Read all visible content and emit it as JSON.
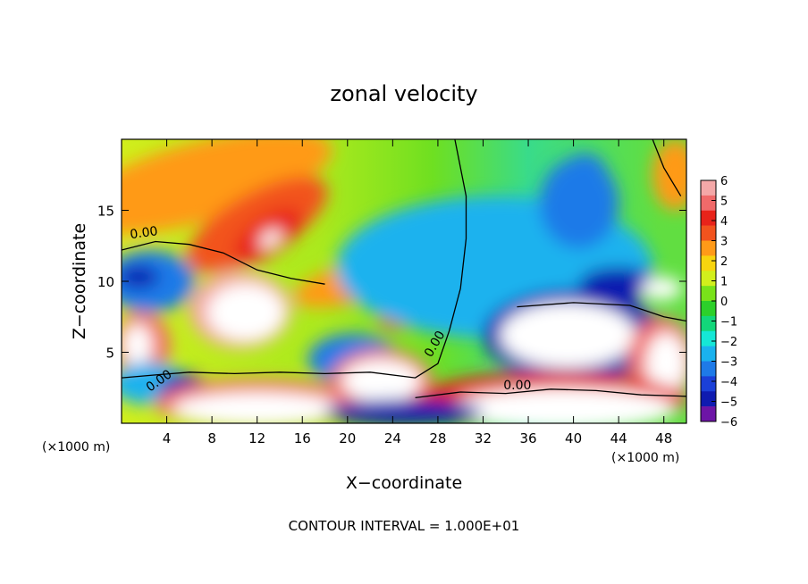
{
  "chart_data": {
    "type": "heatmap",
    "title": "zonal velocity",
    "xlabel": "X−coordinate",
    "ylabel": "Z−coordinate",
    "x_unit_label_left": "(×1000 m)",
    "x_unit_label_right": "(×1000 m)",
    "xlim": [
      0,
      50
    ],
    "ylim": [
      0,
      20
    ],
    "x_ticks": [
      4,
      8,
      12,
      16,
      20,
      24,
      28,
      32,
      36,
      40,
      44,
      48
    ],
    "y_ticks": [
      5,
      10,
      15
    ],
    "x_tick_labels": [
      "4",
      "8",
      "12",
      "16",
      "20",
      "24",
      "28",
      "32",
      "36",
      "40",
      "44",
      "48"
    ],
    "y_tick_labels": [
      "5",
      "10",
      "15"
    ],
    "colorbar": {
      "labels": [
        "6",
        "5",
        "4",
        "3",
        "2",
        "1",
        "0",
        "−1",
        "−2",
        "−3",
        "−4",
        "−5",
        "−6"
      ],
      "min": -6,
      "max": 6,
      "colors": [
        "#f4a8a8",
        "#f06a6a",
        "#e8231a",
        "#f2531e",
        "#ff9a18",
        "#f7d40e",
        "#d2ef1c",
        "#79e21a",
        "#2cd02a",
        "#12d77a",
        "#15e7d6",
        "#1ab2ee",
        "#1e7ae8",
        "#1b40d8",
        "#0f1bb0",
        "#6d15a6"
      ]
    },
    "contour_labels": [
      {
        "text": "0.00",
        "x": 0.8,
        "y": 13.0,
        "rotate": -8
      },
      {
        "text": "0.00",
        "x": 2.5,
        "y": 2.2,
        "rotate": -35
      },
      {
        "text": "0.00",
        "x": 27.4,
        "y": 4.6,
        "rotate": -60
      },
      {
        "text": "0.00",
        "x": 33.8,
        "y": 2.4,
        "rotate": 0
      }
    ],
    "field_blobs": [
      {
        "v": 2.5,
        "cx": 7,
        "cy": 17,
        "rx": 12,
        "ry": 2.8,
        "rot": -15
      },
      {
        "v": 3.5,
        "cx": 12,
        "cy": 14,
        "rx": 7,
        "ry": 2.2,
        "rot": -30
      },
      {
        "v": 4.5,
        "cx": 13,
        "cy": 13.2,
        "rx": 3.5,
        "ry": 1.3,
        "rot": -35
      },
      {
        "v": 6.5,
        "cx": 13.2,
        "cy": 13.0,
        "rx": 1.1,
        "ry": 0.5,
        "rot": -35
      },
      {
        "v": 3,
        "cx": 21,
        "cy": 10,
        "rx": 6,
        "ry": 1.4,
        "rot": -15
      },
      {
        "v": 4.5,
        "cx": 22,
        "cy": 9.5,
        "rx": 2.5,
        "ry": 0.7,
        "rot": -10
      },
      {
        "v": 4,
        "cx": 25.5,
        "cy": 7.8,
        "rx": 2.8,
        "ry": 1.0,
        "rot": -15
      },
      {
        "v": -3.5,
        "cx": 2.5,
        "cy": 10,
        "rx": 4,
        "ry": 2.2,
        "rot": 0
      },
      {
        "v": -4.5,
        "cx": 1.5,
        "cy": 10.3,
        "rx": 1.8,
        "ry": 0.8,
        "rot": 0
      },
      {
        "v": 5.5,
        "cx": 10.5,
        "cy": 8,
        "rx": 4.5,
        "ry": 2.7,
        "rot": 0
      },
      {
        "v": 6.5,
        "cx": 11,
        "cy": 7.8,
        "rx": 3.4,
        "ry": 2.0,
        "rot": 0
      },
      {
        "v": 5,
        "cx": 1.8,
        "cy": 5.5,
        "rx": 2.5,
        "ry": 2.3,
        "rot": 0
      },
      {
        "v": 6.5,
        "cx": 1.4,
        "cy": 5.5,
        "rx": 1.3,
        "ry": 1.5,
        "rot": 0
      },
      {
        "v": -2.5,
        "cx": 2.5,
        "cy": 2.8,
        "rx": 3.5,
        "ry": 1.5,
        "rot": 0
      },
      {
        "v": -2.5,
        "cx": 33,
        "cy": 11,
        "rx": 14,
        "ry": 5,
        "rot": 0
      },
      {
        "v": -3,
        "cx": 40.5,
        "cy": 15.5,
        "rx": 3.5,
        "ry": 3.2,
        "rot": 0
      },
      {
        "v": -3.5,
        "cx": 41,
        "cy": 17.5,
        "rx": 2,
        "ry": 1.5,
        "rot": 0
      },
      {
        "v": -4.5,
        "cx": 40,
        "cy": 6.2,
        "rx": 8,
        "ry": 3.2,
        "rot": 0
      },
      {
        "v": -5,
        "cx": 44,
        "cy": 9.8,
        "rx": 3.5,
        "ry": 1.2,
        "rot": 0
      },
      {
        "v": 6.5,
        "cx": 39.5,
        "cy": 6.2,
        "rx": 6,
        "ry": 2.3,
        "rot": 0
      },
      {
        "v": 6.5,
        "cx": 47.8,
        "cy": 9.5,
        "rx": 1.8,
        "ry": 0.8,
        "rot": 0
      },
      {
        "v": 5,
        "cx": 47.8,
        "cy": 4.5,
        "rx": 3,
        "ry": 3,
        "rot": 0
      },
      {
        "v": 6.5,
        "cx": 48.2,
        "cy": 4.2,
        "rx": 1.8,
        "ry": 2.2,
        "rot": 0
      },
      {
        "v": -3,
        "cx": 45,
        "cy": 1.6,
        "rx": 3,
        "ry": 1.6,
        "rot": 0
      },
      {
        "v": -3.5,
        "cx": 20.5,
        "cy": 4.5,
        "rx": 4,
        "ry": 1.8,
        "rot": 0
      },
      {
        "v": 5,
        "cx": 23,
        "cy": 3,
        "rx": 4.5,
        "ry": 2.2,
        "rot": 0
      },
      {
        "v": 6.5,
        "cx": 23,
        "cy": 3,
        "rx": 3.5,
        "ry": 1.5,
        "rot": 0
      },
      {
        "v": -5,
        "cx": 5.5,
        "cy": 2.2,
        "rx": 2.2,
        "ry": 1.3,
        "rot": 0
      },
      {
        "v": 5,
        "cx": 12,
        "cy": 1.4,
        "rx": 9,
        "ry": 1.7,
        "rot": 0
      },
      {
        "v": 6.5,
        "cx": 12,
        "cy": 1.0,
        "rx": 7.5,
        "ry": 1.2,
        "rot": 0
      },
      {
        "v": 4,
        "cx": 38,
        "cy": 1.6,
        "rx": 12,
        "ry": 2.0,
        "rot": 0
      },
      {
        "v": 6.5,
        "cx": 39,
        "cy": 1.0,
        "rx": 10,
        "ry": 1.5,
        "rot": 0
      },
      {
        "v": -4.5,
        "cx": 25,
        "cy": 0.8,
        "rx": 7,
        "ry": 0.9,
        "rot": 0
      },
      {
        "v": 3,
        "cx": 49,
        "cy": 17.5,
        "rx": 2,
        "ry": 2.5,
        "rot": 0
      }
    ],
    "contour_interval_text": "CONTOUR INTERVAL = 1.000E+01"
  }
}
